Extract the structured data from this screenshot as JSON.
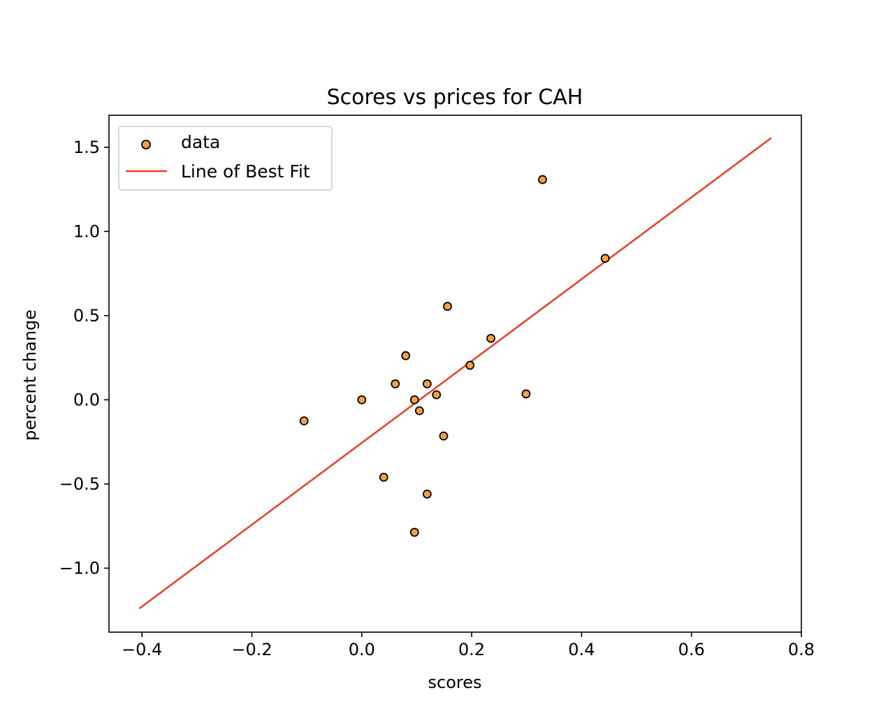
{
  "chart_data": {
    "type": "scatter",
    "title": "Scores vs prices for CAH",
    "xlabel": "scores",
    "ylabel": "percent change",
    "xlim": [
      -0.46,
      0.8
    ],
    "ylim": [
      -1.38,
      1.69
    ],
    "xticks": [
      -0.4,
      -0.2,
      0.0,
      0.2,
      0.4,
      0.6,
      0.8
    ],
    "xtick_labels": [
      "−0.4",
      "−0.2",
      "0.0",
      "0.2",
      "0.4",
      "0.6",
      "0.8"
    ],
    "yticks": [
      -1.0,
      -0.5,
      0.0,
      0.5,
      1.0,
      1.5
    ],
    "ytick_labels": [
      "−1.0",
      "−0.5",
      "0.0",
      "0.5",
      "1.0",
      "1.5"
    ],
    "grid": false,
    "legend_position": "upper-left",
    "series": [
      {
        "name": "data",
        "kind": "scatter",
        "color": "#F5A142",
        "edge_color": "#000000",
        "points": [
          {
            "x": -0.105,
            "y": -0.125
          },
          {
            "x": 0.0,
            "y": 0.0
          },
          {
            "x": 0.04,
            "y": -0.46
          },
          {
            "x": 0.061,
            "y": 0.095
          },
          {
            "x": 0.08,
            "y": 0.262
          },
          {
            "x": 0.096,
            "y": 0.0
          },
          {
            "x": 0.096,
            "y": -0.787
          },
          {
            "x": 0.105,
            "y": -0.065
          },
          {
            "x": 0.119,
            "y": 0.095
          },
          {
            "x": 0.119,
            "y": -0.56
          },
          {
            "x": 0.136,
            "y": 0.03
          },
          {
            "x": 0.149,
            "y": -0.215
          },
          {
            "x": 0.156,
            "y": 0.555
          },
          {
            "x": 0.197,
            "y": 0.205
          },
          {
            "x": 0.235,
            "y": 0.365
          },
          {
            "x": 0.299,
            "y": 0.035
          },
          {
            "x": 0.329,
            "y": 1.308
          },
          {
            "x": 0.443,
            "y": 0.84
          }
        ]
      },
      {
        "name": "Line of Best Fit",
        "kind": "line",
        "color": "#E8442E",
        "points": [
          {
            "x": -0.405,
            "y": -1.24
          },
          {
            "x": 0.745,
            "y": 1.555
          }
        ]
      }
    ]
  }
}
